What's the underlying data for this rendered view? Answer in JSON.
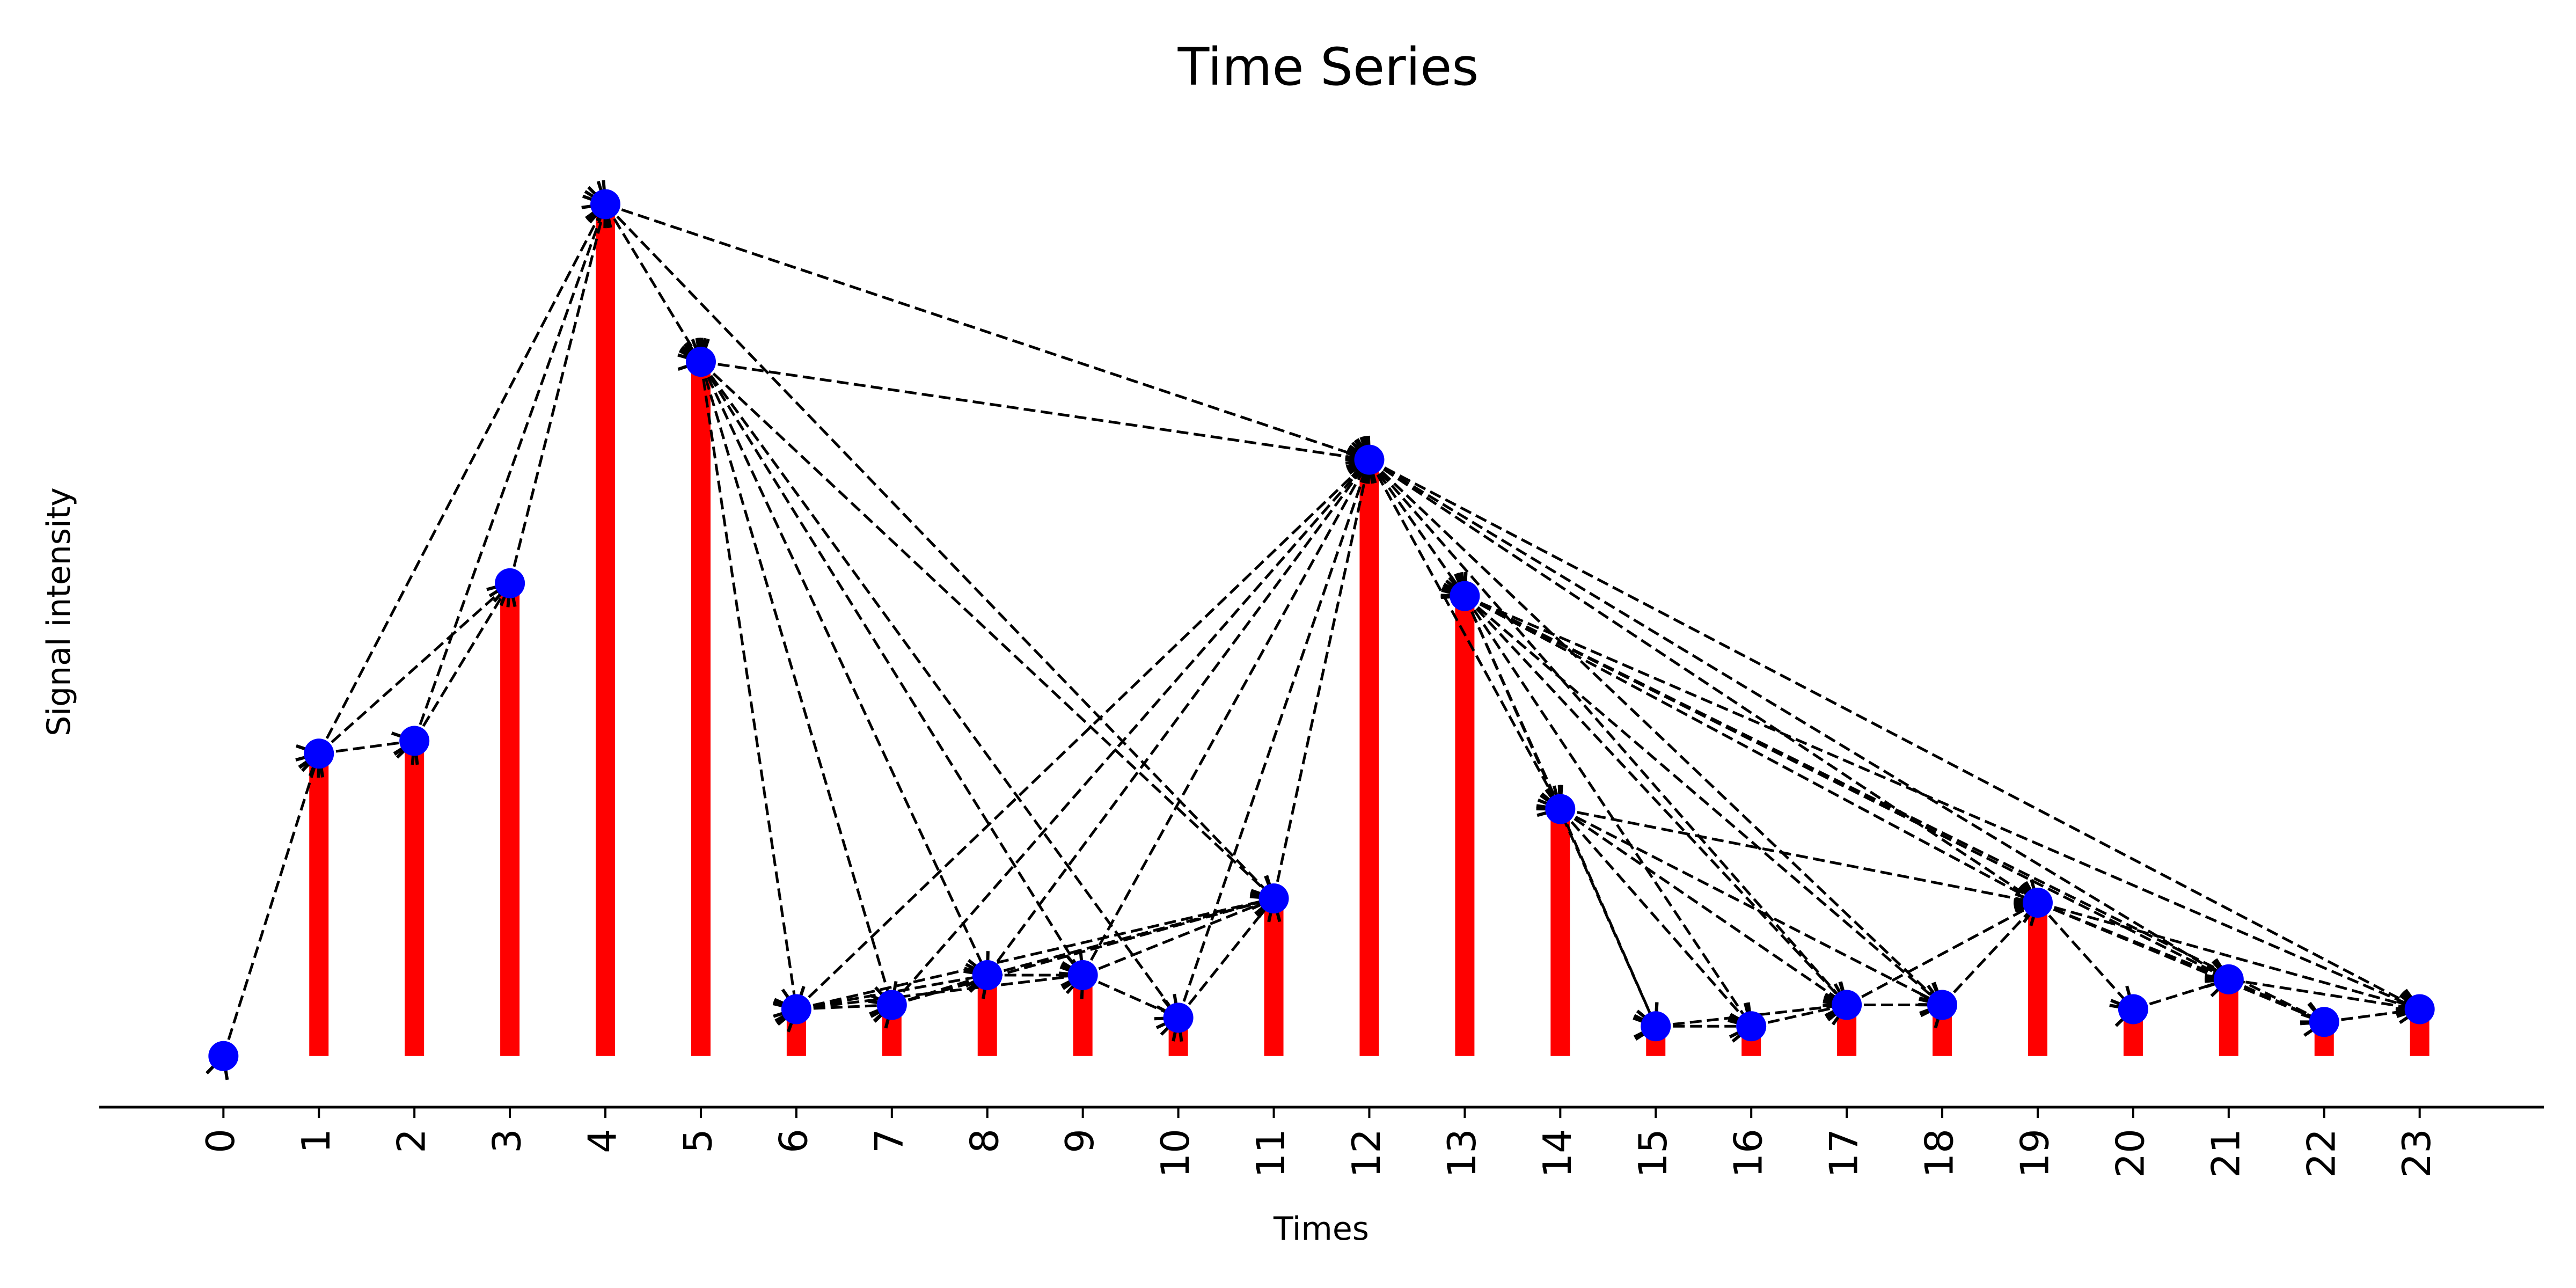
{
  "chart_data": {
    "type": "bar",
    "title": "Time Series",
    "xlabel": "Times",
    "ylabel": "Signal intensity",
    "categories": [
      "0",
      "1",
      "2",
      "3",
      "4",
      "5",
      "6",
      "7",
      "8",
      "9",
      "10",
      "11",
      "12",
      "13",
      "14",
      "15",
      "16",
      "17",
      "18",
      "19",
      "20",
      "21",
      "22",
      "23"
    ],
    "x": [
      0,
      1,
      2,
      3,
      4,
      5,
      6,
      7,
      8,
      9,
      10,
      11,
      12,
      13,
      14,
      15,
      16,
      17,
      18,
      19,
      20,
      21,
      22,
      23
    ],
    "values": [
      0.0,
      3.55,
      3.7,
      5.55,
      10.0,
      8.15,
      0.55,
      0.6,
      0.95,
      0.95,
      0.45,
      1.85,
      7.0,
      5.4,
      2.9,
      0.35,
      0.35,
      0.6,
      0.6,
      1.8,
      0.55,
      0.9,
      0.4,
      0.55
    ],
    "ylim": [
      -0.6,
      11.2
    ],
    "xlim": [
      -1.3,
      24.3
    ],
    "grid": false,
    "y_ticks_visible": false,
    "bar_color": "#ff0000",
    "point_color": "#0000ff",
    "edge_color": "#000000",
    "edge_style": "dashed-arrow",
    "visibility_edges": [
      [
        0,
        1
      ],
      [
        1,
        2
      ],
      [
        1,
        3
      ],
      [
        1,
        4
      ],
      [
        2,
        3
      ],
      [
        2,
        4
      ],
      [
        3,
        4
      ],
      [
        4,
        5
      ],
      [
        4,
        11
      ],
      [
        4,
        12
      ],
      [
        5,
        6
      ],
      [
        5,
        7
      ],
      [
        5,
        8
      ],
      [
        5,
        9
      ],
      [
        5,
        10
      ],
      [
        5,
        11
      ],
      [
        5,
        12
      ],
      [
        6,
        7
      ],
      [
        6,
        8
      ],
      [
        6,
        9
      ],
      [
        6,
        11
      ],
      [
        6,
        12
      ],
      [
        7,
        8
      ],
      [
        7,
        11
      ],
      [
        7,
        12
      ],
      [
        8,
        9
      ],
      [
        8,
        11
      ],
      [
        8,
        12
      ],
      [
        9,
        10
      ],
      [
        9,
        11
      ],
      [
        9,
        12
      ],
      [
        10,
        11
      ],
      [
        10,
        12
      ],
      [
        11,
        12
      ],
      [
        12,
        13
      ],
      [
        12,
        14
      ],
      [
        12,
        17
      ],
      [
        12,
        18
      ],
      [
        12,
        19
      ],
      [
        12,
        21
      ],
      [
        12,
        23
      ],
      [
        13,
        14
      ],
      [
        13,
        15
      ],
      [
        13,
        16
      ],
      [
        13,
        17
      ],
      [
        13,
        18
      ],
      [
        13,
        19
      ],
      [
        13,
        21
      ],
      [
        13,
        22
      ],
      [
        13,
        23
      ],
      [
        14,
        15
      ],
      [
        14,
        16
      ],
      [
        14,
        17
      ],
      [
        14,
        18
      ],
      [
        14,
        19
      ],
      [
        15,
        16
      ],
      [
        15,
        17
      ],
      [
        16,
        17
      ],
      [
        17,
        18
      ],
      [
        17,
        19
      ],
      [
        18,
        19
      ],
      [
        19,
        20
      ],
      [
        19,
        21
      ],
      [
        19,
        22
      ],
      [
        19,
        23
      ],
      [
        20,
        21
      ],
      [
        21,
        22
      ],
      [
        21,
        23
      ],
      [
        22,
        23
      ]
    ]
  }
}
